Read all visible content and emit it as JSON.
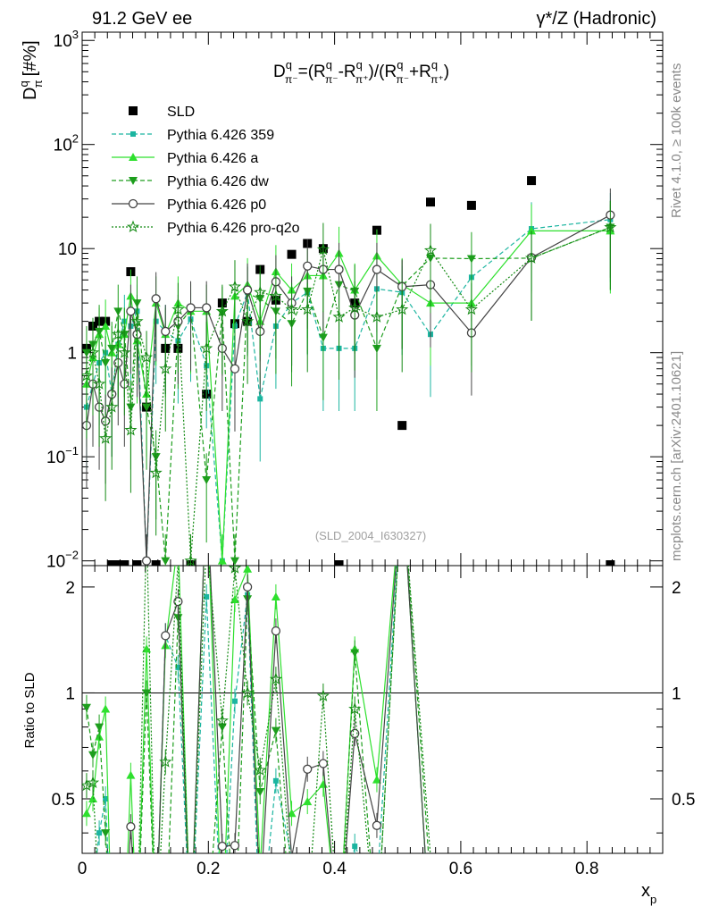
{
  "header": {
    "left_title": "91.2 GeV ee",
    "right_title": "γ*/Z (Hadronic)"
  },
  "side_labels": {
    "rivet": "Rivet 4.1.0, ≥ 100k events",
    "mcplots": "mcplots.cern.ch [arXiv:2401.10621]"
  },
  "chart_data": [
    {
      "type": "scatter",
      "panel": "main",
      "title": "D^q_π^-=(R^q_π^- - R^q_π^+)/(R^q_π^- + R^q_π^+)",
      "title_parts": {
        "D": "D",
        "q": "q",
        "pi_minus": "π⁻",
        "eq_open": "=(R",
        "minus": "-R",
        "slash_open": ")/(R",
        "plus": "+R",
        "pi_plus": "π⁺",
        "close": ")"
      },
      "ylabel_main": "D",
      "ylabel_sup": "q",
      "ylabel_sub": "π",
      "ylabel_unit": "[#%]",
      "xlabel_main": "x",
      "xlabel_sub": "p",
      "watermark": "(SLD_2004_I630327)",
      "yscale": "log",
      "ylim": [
        0.009,
        1200
      ],
      "xlim": [
        0,
        0.92
      ],
      "y_ticks": [
        {
          "v": 0.01,
          "b": "10",
          "e": "−2"
        },
        {
          "v": 0.1,
          "b": "10",
          "e": "−1"
        },
        {
          "v": 1,
          "b": "1",
          "e": ""
        },
        {
          "v": 10,
          "b": "10",
          "e": ""
        },
        {
          "v": 100,
          "b": "10",
          "e": "2"
        },
        {
          "v": 1000,
          "b": "10",
          "e": "3"
        }
      ],
      "legend": [
        {
          "label": "SLD",
          "color": "#000000",
          "marker": "square",
          "dash": "none"
        },
        {
          "label": "Pythia 6.426 359",
          "color": "#1bb5a0",
          "marker": "smallsquare",
          "dash": "5,3"
        },
        {
          "label": "Pythia 6.426 a",
          "color": "#2ee02e",
          "marker": "triangle",
          "dash": ""
        },
        {
          "label": "Pythia 6.426 dw",
          "color": "#1d9e1d",
          "marker": "invtriangle",
          "dash": "5,3"
        },
        {
          "label": "Pythia 6.426 p0",
          "color": "#444444",
          "marker": "circle",
          "dash": ""
        },
        {
          "label": "Pythia 6.426 pro-q2o",
          "color": "#138a13",
          "marker": "star",
          "dash": "2,2"
        }
      ],
      "series": [
        {
          "name": "SLD",
          "x": [
            0.007,
            0.017,
            0.027,
            0.037,
            0.047,
            0.057,
            0.067,
            0.077,
            0.087,
            0.102,
            0.117,
            0.132,
            0.152,
            0.172,
            0.197,
            0.222,
            0.242,
            0.262,
            0.282,
            0.307,
            0.332,
            0.357,
            0.382,
            0.407,
            0.432,
            0.467,
            0.507,
            0.552,
            0.617,
            0.712,
            0.837
          ],
          "y": [
            1.1,
            1.8,
            2.0,
            2.0,
            0.008,
            0.008,
            0.008,
            6.0,
            0.008,
            0.3,
            0.008,
            1.1,
            1.1,
            0.008,
            0.4,
            3.0,
            1.9,
            2.0,
            6.3,
            3.2,
            8.8,
            11.2,
            10.0,
            0.008,
            3.0,
            15.0,
            0.2,
            28.0,
            26.0,
            45.0,
            0.008
          ]
        },
        {
          "name": "Pythia 6.426 359",
          "x": [
            0.007,
            0.017,
            0.027,
            0.037,
            0.047,
            0.057,
            0.067,
            0.077,
            0.087,
            0.102,
            0.117,
            0.132,
            0.152,
            0.172,
            0.197,
            0.222,
            0.242,
            0.262,
            0.282,
            0.307,
            0.332,
            0.357,
            0.382,
            0.407,
            0.432,
            0.467,
            0.507,
            0.552,
            0.617,
            0.712,
            0.837
          ],
          "y": [
            0.3,
            0.5,
            0.8,
            1.0,
            0.4,
            1.2,
            2.0,
            1.8,
            2.5,
            0.01,
            2.0,
            1.6,
            1.3,
            2.1,
            0.75,
            0.01,
            1.8,
            3.8,
            0.36,
            1.8,
            3.0,
            3.8,
            1.1,
            1.1,
            1.1,
            4.1,
            3.8,
            1.5,
            5.3,
            15.5,
            19.0
          ]
        },
        {
          "name": "Pythia 6.426 a",
          "x": [
            0.007,
            0.017,
            0.027,
            0.037,
            0.047,
            0.057,
            0.067,
            0.077,
            0.087,
            0.102,
            0.117,
            0.132,
            0.152,
            0.172,
            0.197,
            0.222,
            0.242,
            0.262,
            0.282,
            0.307,
            0.332,
            0.357,
            0.382,
            0.407,
            0.432,
            0.467,
            0.507,
            0.552,
            0.617,
            0.712,
            0.837
          ],
          "y": [
            0.5,
            0.9,
            1.5,
            1.8,
            1.0,
            1.2,
            1.5,
            3.5,
            1.3,
            0.4,
            3.0,
            1.5,
            3.0,
            2.5,
            2.5,
            0.01,
            3.5,
            4.5,
            2.0,
            6.0,
            4.0,
            5.5,
            5.5,
            9.0,
            4.0,
            8.5,
            4.5,
            3.0,
            3.0,
            14.8,
            14.8
          ]
        },
        {
          "name": "Pythia 6.426 dw",
          "x": [
            0.007,
            0.017,
            0.027,
            0.037,
            0.047,
            0.057,
            0.067,
            0.077,
            0.087,
            0.102,
            0.117,
            0.132,
            0.152,
            0.172,
            0.197,
            0.222,
            0.242,
            0.262,
            0.282,
            0.307,
            0.332,
            0.357,
            0.382,
            0.407,
            0.432,
            0.467,
            0.507,
            0.552,
            0.617,
            0.712,
            0.837
          ],
          "y": [
            1.0,
            1.2,
            1.6,
            0.8,
            1.1,
            2.5,
            1.5,
            0.3,
            3.0,
            0.3,
            0.1,
            0.01,
            1.8,
            2.6,
            0.06,
            2.4,
            0.01,
            3.7,
            3.3,
            2.5,
            1.9,
            3.9,
            1.4,
            4.5,
            3.9,
            1.1,
            4.4,
            8.1,
            8.0,
            8.1,
            16.0
          ]
        },
        {
          "name": "Pythia 6.426 p0",
          "x": [
            0.007,
            0.017,
            0.027,
            0.037,
            0.047,
            0.057,
            0.067,
            0.077,
            0.087,
            0.102,
            0.117,
            0.132,
            0.152,
            0.172,
            0.197,
            0.222,
            0.242,
            0.262,
            0.282,
            0.307,
            0.332,
            0.357,
            0.382,
            0.407,
            0.432,
            0.467,
            0.507,
            0.552,
            0.617,
            0.712,
            0.837
          ],
          "y": [
            0.2,
            0.5,
            0.3,
            0.22,
            0.4,
            0.8,
            0.5,
            2.5,
            1.5,
            0.01,
            3.3,
            1.6,
            2.0,
            2.7,
            2.7,
            1.1,
            0.7,
            4.0,
            1.6,
            4.8,
            3.0,
            6.8,
            6.3,
            6.3,
            2.3,
            6.3,
            4.3,
            4.5,
            1.55,
            8.2,
            21.0
          ]
        },
        {
          "name": "Pythia 6.426 pro-q2o",
          "x": [
            0.007,
            0.017,
            0.027,
            0.037,
            0.047,
            0.057,
            0.067,
            0.077,
            0.087,
            0.102,
            0.117,
            0.132,
            0.152,
            0.172,
            0.197,
            0.222,
            0.242,
            0.262,
            0.282,
            0.307,
            0.332,
            0.357,
            0.382,
            0.407,
            0.432,
            0.467,
            0.507,
            0.552,
            0.617,
            0.712,
            0.837
          ],
          "y": [
            0.6,
            1.0,
            0.5,
            0.15,
            0.3,
            1.5,
            1.0,
            0.18,
            2.0,
            0.9,
            0.07,
            0.7,
            2.6,
            0.01,
            1.1,
            2.5,
            4.3,
            2.0,
            3.8,
            3.5,
            2.6,
            2.6,
            9.8,
            2.2,
            2.7,
            2.2,
            2.6,
            9.6,
            2.6,
            8.1,
            16.0
          ]
        }
      ]
    },
    {
      "type": "line",
      "panel": "ratio",
      "ylabel": "Ratio to SLD",
      "ylim": [
        0.35,
        2.3
      ],
      "xlim": [
        0,
        0.92
      ],
      "y_ticks": [
        0.5,
        1,
        2
      ],
      "x_ticks": [
        0,
        0.2,
        0.4,
        0.6,
        0.8
      ],
      "x_tick_labels": [
        "0",
        "0.2",
        "0.4",
        "0.6",
        "0.8"
      ],
      "reference_line": 1
    }
  ]
}
